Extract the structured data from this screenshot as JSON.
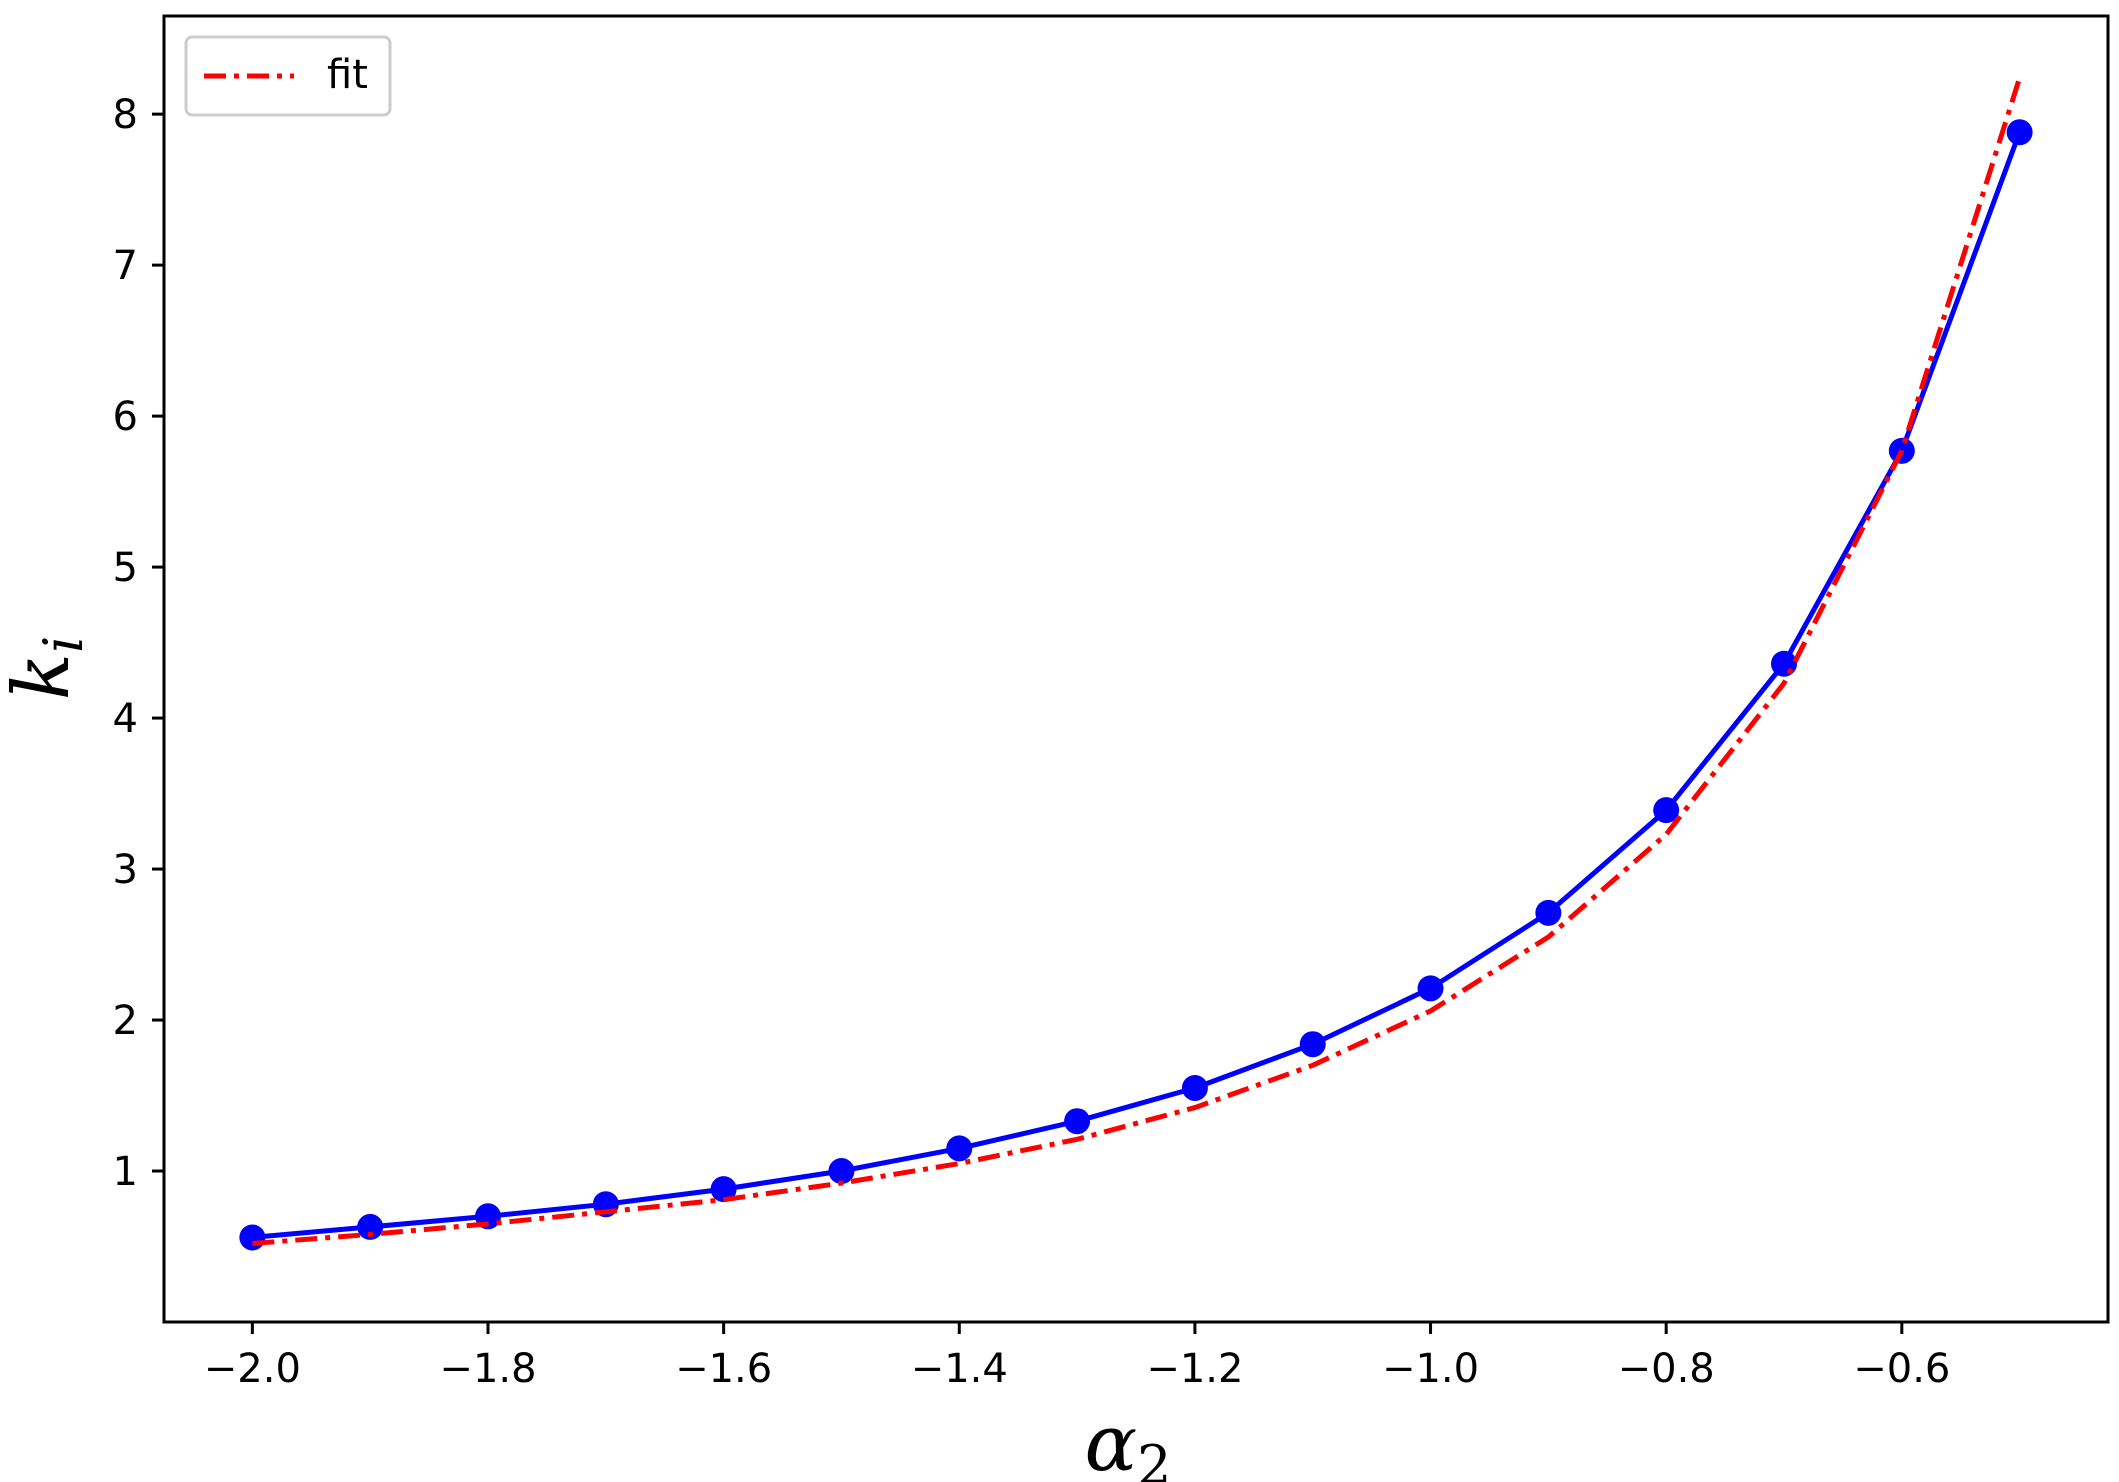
{
  "chart_data": {
    "type": "line",
    "xlabel": "α",
    "xlabel_sub": "2",
    "ylabel": "k",
    "ylabel_sub": "i",
    "xlim": [
      -2.075,
      -0.425
    ],
    "ylim": [
      0.0,
      8.65
    ],
    "xticks": [
      -2.0,
      -1.8,
      -1.6,
      -1.4,
      -1.2,
      -1.0,
      -0.8,
      -0.6
    ],
    "xtick_labels": [
      "−2.0",
      "−1.8",
      "−1.6",
      "−1.4",
      "−1.2",
      "−1.0",
      "−0.8",
      "−0.6"
    ],
    "yticks": [
      1,
      2,
      3,
      4,
      5,
      6,
      7,
      8
    ],
    "ytick_labels": [
      "1",
      "2",
      "3",
      "4",
      "5",
      "6",
      "7",
      "8"
    ],
    "grid": false,
    "legend": {
      "position": "top-left",
      "entries": [
        "fit"
      ]
    },
    "series": [
      {
        "style": "solid-markers",
        "color": "#0000ff",
        "x": [
          -2.0,
          -1.9,
          -1.8,
          -1.7,
          -1.6,
          -1.5,
          -1.4,
          -1.3,
          -1.2,
          -1.1,
          -1.0,
          -0.9,
          -0.8,
          -0.7,
          -0.6,
          -0.5
        ],
        "y": [
          0.56,
          0.63,
          0.7,
          0.78,
          0.88,
          1.0,
          1.15,
          1.33,
          1.55,
          1.84,
          2.21,
          2.71,
          3.39,
          4.36,
          5.77,
          7.88
        ]
      },
      {
        "name": "fit",
        "style": "dashdot",
        "color": "#ff0000",
        "x": [
          -2.0,
          -1.9,
          -1.8,
          -1.7,
          -1.6,
          -1.5,
          -1.4,
          -1.3,
          -1.2,
          -1.1,
          -1.0,
          -0.9,
          -0.8,
          -0.7,
          -0.6,
          -0.5
        ],
        "y": [
          0.52,
          0.58,
          0.65,
          0.73,
          0.81,
          0.92,
          1.05,
          1.21,
          1.42,
          1.7,
          2.06,
          2.55,
          3.23,
          4.23,
          5.77,
          8.24
        ]
      }
    ]
  }
}
